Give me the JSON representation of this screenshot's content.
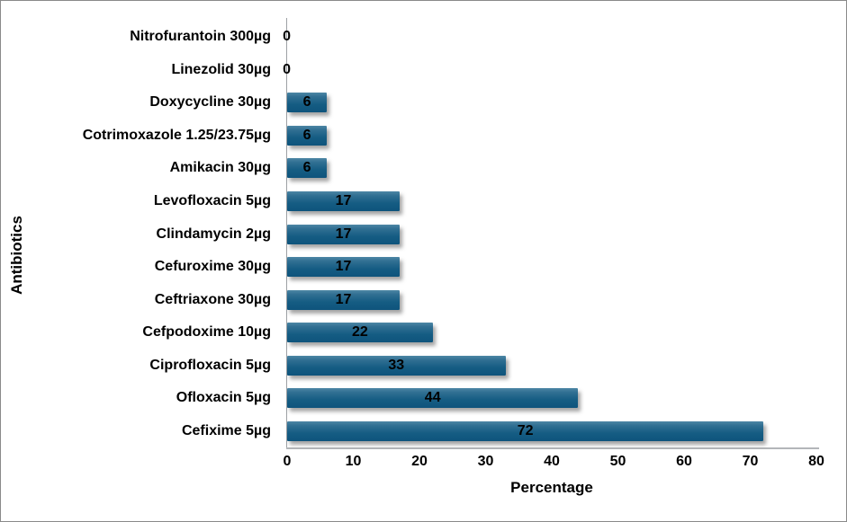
{
  "chart_data": {
    "type": "bar",
    "orientation": "horizontal",
    "title": "",
    "xlabel": "Percentage",
    "ylabel": "Antibiotics",
    "xlim": [
      0,
      80
    ],
    "xticks": [
      0,
      10,
      20,
      30,
      40,
      50,
      60,
      70,
      80
    ],
    "grid": false,
    "legend": false,
    "data_label_position": "center",
    "categories": [
      "Nitrofurantoin 300µg",
      "Linezolid 30µg",
      "Doxycycline 30µg",
      "Cotrimoxazole 1.25/23.75µg",
      "Amikacin 30µg",
      "Levofloxacin 5µg",
      "Clindamycin 2µg",
      "Cefuroxime 30µg",
      "Ceftriaxone 30µg",
      "Cefpodoxime 10µg",
      "Ciprofloxacin 5µg",
      "Ofloxacin 5µg",
      "Cefixime 5µg"
    ],
    "values": [
      0,
      0,
      6,
      6,
      6,
      17,
      17,
      17,
      17,
      22,
      33,
      44,
      72
    ],
    "colors": {
      "bar_gradient_top": "#4d86a5",
      "bar_gradient_mid": "#155c83",
      "bar_gradient_bottom": "#0e547c",
      "data_label": "#000000",
      "axis_line": "#9da1a5",
      "text": "#000000",
      "background": "#ffffff",
      "frame_border": "#8a8a8a"
    }
  }
}
